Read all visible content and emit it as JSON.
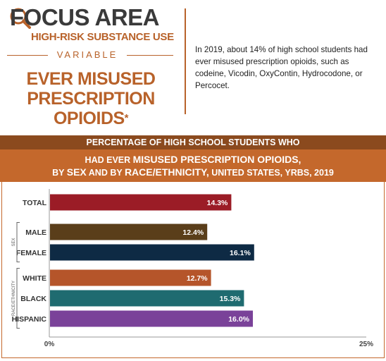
{
  "header": {
    "focus_title": "FOCUS AREA",
    "focus_subtitle": "HIGH-RISK SUBSTANCE USE",
    "variable_label": "VARIABLE",
    "variable_title_line1": "EVER MISUSED",
    "variable_title_line2": "PRESCRIPTION OPIOIDS",
    "asterisk": "*",
    "description": "In 2019, about 14% of high school students had ever misused prescription opioids, such as codeine, Vicodin, OxyContin, Hydrocodone, or Percocet."
  },
  "chart_header": {
    "line1": "PERCENTAGE OF HIGH SCHOOL STUDENTS WHO",
    "line2_a": "HAD EVER ",
    "line2_b": "MISUSED PRESCRIPTION OPIOIDS,",
    "line3_a": "BY ",
    "line3_b": "SEX",
    "line3_c": " AND BY ",
    "line3_d": "RACE/ETHNICITY,",
    "line3_e": " UNITED STATES, YRBS, 2019"
  },
  "chart_data": {
    "type": "bar",
    "orientation": "horizontal",
    "title": "PERCENTAGE OF HIGH SCHOOL STUDENTS WHO HAD EVER MISUSED PRESCRIPTION OPIOIDS, BY SEX AND BY RACE/ETHNICITY, UNITED STATES, YRBS, 2019",
    "categories": [
      "TOTAL",
      "MALE",
      "FEMALE",
      "WHITE",
      "BLACK",
      "HISPANIC"
    ],
    "values": [
      14.3,
      12.4,
      16.1,
      12.7,
      15.3,
      16.0
    ],
    "value_labels": [
      "14.3%",
      "12.4%",
      "16.1%",
      "12.7%",
      "15.3%",
      "16.0%"
    ],
    "colors": [
      "#9b1c26",
      "#5a3e1a",
      "#0e2a44",
      "#b5552a",
      "#1f6b70",
      "#7a4299"
    ],
    "groups": [
      {
        "label": "SEX",
        "members": [
          "MALE",
          "FEMALE"
        ]
      },
      {
        "label": "RACE/ETHNICITY",
        "members": [
          "WHITE",
          "BLACK",
          "HISPANIC"
        ]
      }
    ],
    "xlim": [
      0,
      25
    ],
    "x_tick_labels": [
      "0%",
      "25%"
    ],
    "grid": false
  }
}
